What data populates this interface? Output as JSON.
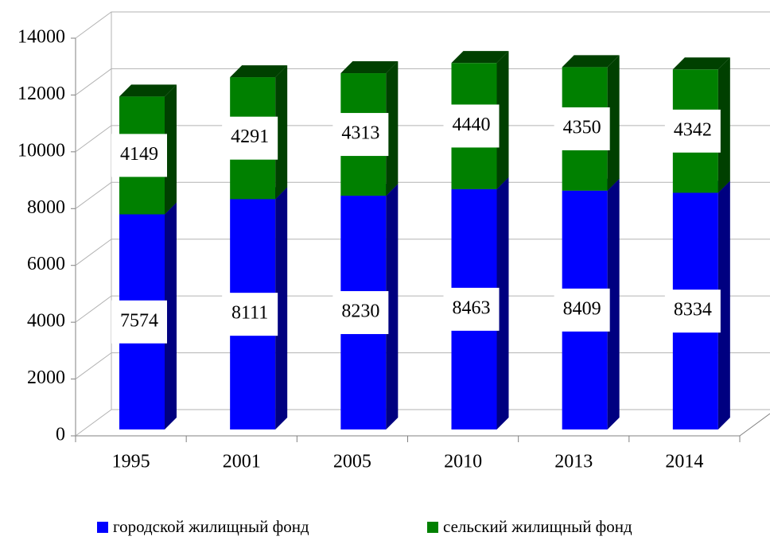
{
  "chart_data": {
    "type": "bar3d_stacked",
    "categories": [
      "1995",
      "2001",
      "2005",
      "2010",
      "2013",
      "2014"
    ],
    "series": [
      {
        "name": "городской жилищный фонд",
        "color": "#0000ff",
        "side": "#000080",
        "values": [
          7574,
          8111,
          8230,
          8463,
          8409,
          8334
        ]
      },
      {
        "name": "сельский жилищный фонд",
        "color": "#008000",
        "side": "#004000",
        "values": [
          4149,
          4291,
          4313,
          4440,
          4350,
          4342
        ]
      }
    ],
    "ylim": [
      0,
      14000
    ],
    "yticks": [
      0,
      2000,
      4000,
      6000,
      8000,
      10000,
      12000,
      14000
    ],
    "grid": true,
    "legend": "bottom"
  }
}
